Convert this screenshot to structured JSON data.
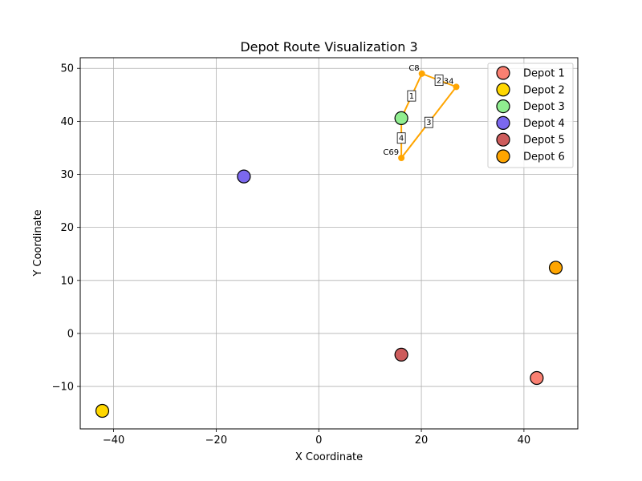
{
  "chart_data": {
    "type": "scatter",
    "title": "Depot Route Visualization 3",
    "xlabel": "X Coordinate",
    "ylabel": "Y Coordinate",
    "xlim": [
      -46.5,
      50.5
    ],
    "ylim": [
      -18,
      52
    ],
    "xticks": [
      -40,
      -20,
      0,
      20,
      40
    ],
    "xtick_labels": [
      "−40",
      "−20",
      "0",
      "20",
      "40"
    ],
    "yticks": [
      -10,
      0,
      10,
      20,
      30,
      40,
      50
    ],
    "ytick_labels": [
      "−10",
      "0",
      "10",
      "20",
      "30",
      "40",
      "50"
    ],
    "grid": true,
    "legend_position": "top-right",
    "depots": [
      {
        "name": "Depot 1",
        "x": 42.5,
        "y": -8.4,
        "color": "#fa8072"
      },
      {
        "name": "Depot 2",
        "x": -42.2,
        "y": -14.6,
        "color": "#ffd700"
      },
      {
        "name": "Depot 3",
        "x": 16.1,
        "y": 40.6,
        "color": "#90ee90"
      },
      {
        "name": "Depot 4",
        "x": -14.6,
        "y": 29.6,
        "color": "#7b68ee"
      },
      {
        "name": "Depot 5",
        "x": 16.1,
        "y": -4.0,
        "color": "#cd5c5c"
      },
      {
        "name": "Depot 6",
        "x": 46.2,
        "y": 12.4,
        "color": "#ffa500"
      }
    ],
    "route": {
      "color": "#ffa500",
      "points": [
        {
          "x": 16.1,
          "y": 40.6
        },
        {
          "x": 20.1,
          "y": 49.0
        },
        {
          "x": 26.8,
          "y": 46.5
        },
        {
          "x": 16.1,
          "y": 33.1
        },
        {
          "x": 16.1,
          "y": 40.6
        }
      ],
      "customers": [
        {
          "label": "C8",
          "x": 20.1,
          "y": 49.0
        },
        {
          "label": "C34",
          "x": 26.8,
          "y": 46.5
        },
        {
          "label": "C69",
          "x": 16.1,
          "y": 33.1
        }
      ],
      "step_labels": [
        "1",
        "2",
        "3",
        "4"
      ]
    }
  }
}
